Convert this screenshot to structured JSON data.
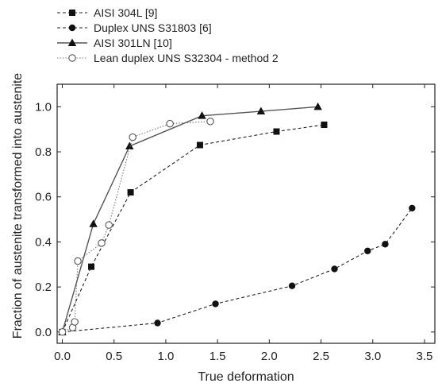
{
  "chart_data": {
    "type": "line",
    "xlabel": "True deformation",
    "ylabel": "Fraction of austenite transformed into austenite",
    "xlim": [
      -0.05,
      3.6
    ],
    "ylim": [
      -0.05,
      1.1
    ],
    "x_ticks": [
      "0.0",
      "0.5",
      "1.0",
      "1.5",
      "2.0",
      "2.5",
      "3.0",
      "3.5"
    ],
    "y_ticks": [
      "0.0",
      "0.2",
      "0.4",
      "0.6",
      "0.8",
      "1.0"
    ],
    "x_tick_values": [
      0,
      0.5,
      1.0,
      1.5,
      2.0,
      2.5,
      3.0,
      3.5
    ],
    "y_tick_values": [
      0,
      0.2,
      0.4,
      0.6,
      0.8,
      1.0
    ],
    "grid": false,
    "legend_position": "top-left, above plot",
    "series": [
      {
        "name": "AISI 304L [9]",
        "marker": "square-filled",
        "line_style": "dashed",
        "color": "#222222",
        "points": [
          [
            0.0,
            0.0
          ],
          [
            0.28,
            0.29
          ],
          [
            0.66,
            0.62
          ],
          [
            1.33,
            0.83
          ],
          [
            2.07,
            0.89
          ],
          [
            2.53,
            0.92
          ]
        ]
      },
      {
        "name": "Duplex UNS S31803 [6]",
        "marker": "circle-filled",
        "line_style": "dashed",
        "color": "#222222",
        "points": [
          [
            0.0,
            0.0
          ],
          [
            0.92,
            0.04
          ],
          [
            1.48,
            0.125
          ],
          [
            2.22,
            0.205
          ],
          [
            2.63,
            0.28
          ],
          [
            2.95,
            0.36
          ],
          [
            3.12,
            0.39
          ],
          [
            3.38,
            0.55
          ]
        ]
      },
      {
        "name": "AISI 301LN [10]",
        "marker": "triangle-filled",
        "line_style": "solid",
        "color": "#555555",
        "points": [
          [
            0.0,
            0.0
          ],
          [
            0.3,
            0.48
          ],
          [
            0.65,
            0.825
          ],
          [
            1.35,
            0.96
          ],
          [
            1.92,
            0.98
          ],
          [
            2.47,
            1.0
          ]
        ]
      },
      {
        "name": "Lean duplex UNS S32304 - method 2",
        "marker": "circle-open",
        "line_style": "dotted",
        "color": "#777777",
        "points": [
          [
            0.0,
            0.0
          ],
          [
            0.1,
            0.02
          ],
          [
            0.12,
            0.045
          ],
          [
            0.15,
            0.315
          ],
          [
            0.38,
            0.395
          ],
          [
            0.45,
            0.475
          ],
          [
            0.68,
            0.865
          ],
          [
            1.04,
            0.925
          ],
          [
            1.43,
            0.935
          ]
        ]
      }
    ]
  }
}
